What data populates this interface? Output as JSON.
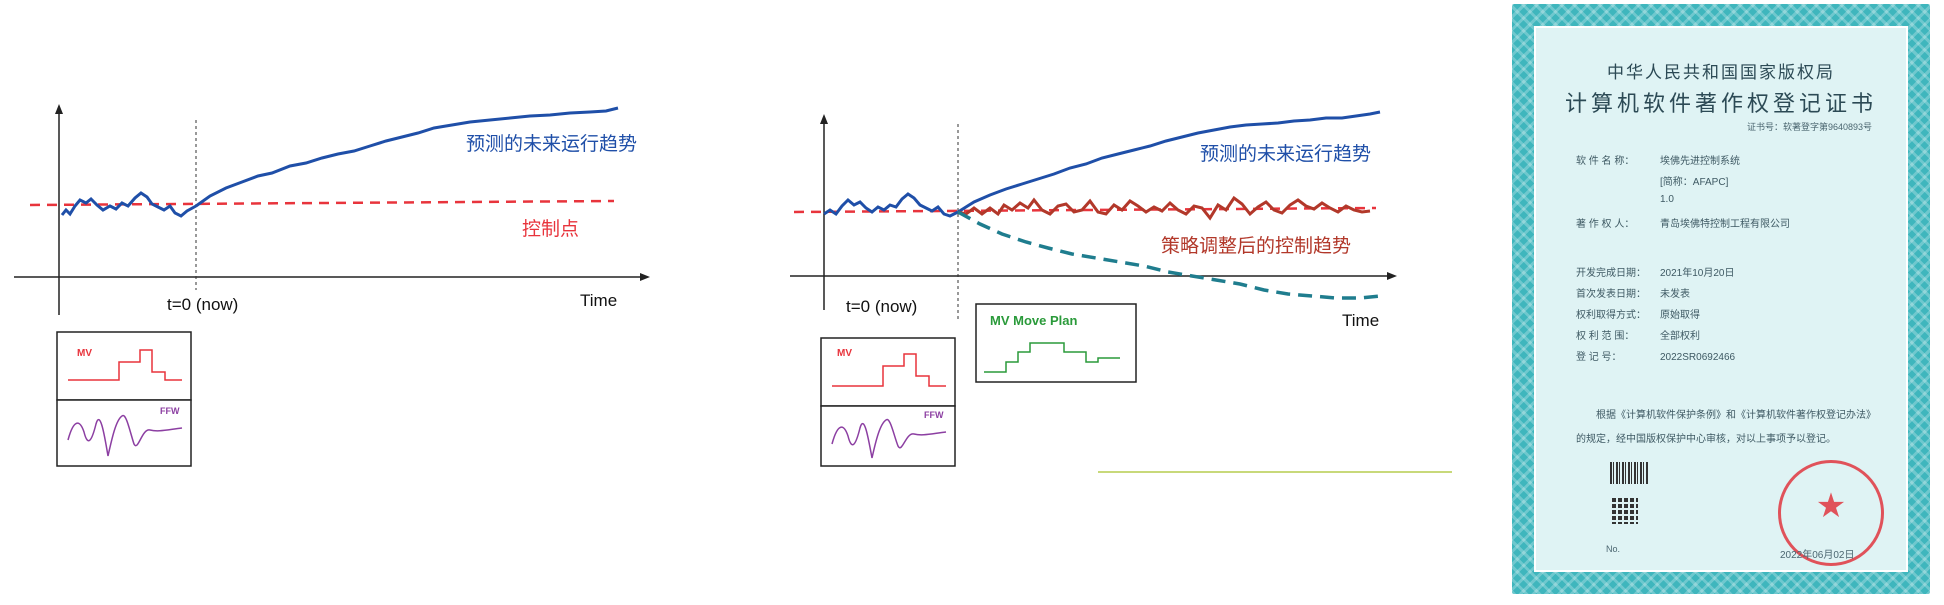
{
  "left": {
    "forecast_label": "预测的未来运行趋势",
    "setpoint_label": "控制点",
    "now_label": "t=0 (now)",
    "time_label": "Time",
    "mv_label": "MV",
    "ffw_label": "FFW"
  },
  "right": {
    "forecast_label": "预测的未来运行趋势",
    "adjusted_label": "策略调整后的控制趋势",
    "now_label": "t=0 (now)",
    "time_label": "Time",
    "mv_label": "MV",
    "ffw_label": "FFW",
    "plan_label": "MV Move Plan"
  },
  "colors": {
    "forecast": "#1f4fa8",
    "setpoint": "#e8343c",
    "adjusted": "#b2382a",
    "dashed_trend": "#1f7d8e",
    "mv": "#e8343c",
    "ffw": "#8c3fa2",
    "plan": "#2a9a3a",
    "certificate_border": "#3fb6bd"
  },
  "certificate": {
    "title1": "中华人民共和国国家版权局",
    "title2": "计算机软件著作权登记证书",
    "number": "证书号：软著登字第9640893号",
    "fields": [
      {
        "label": "软 件 名 称：",
        "value": "埃佛先进控制系统"
      },
      {
        "label": "",
        "value": "[简称：AFAPC]"
      },
      {
        "label": "",
        "value": "1.0"
      },
      {
        "label": "著 作 权 人：",
        "value": "青岛埃佛特控制工程有限公司"
      },
      {
        "label": "开发完成日期：",
        "value": "2021年10月20日"
      },
      {
        "label": "首次发表日期：",
        "value": "未发表"
      },
      {
        "label": "权利取得方式：",
        "value": "原始取得"
      },
      {
        "label": "权 利 范 围：",
        "value": "全部权利"
      },
      {
        "label": "登   记   号：",
        "value": "2022SR0692466"
      }
    ],
    "paragraph": "根据《计算机软件保护条例》和《计算机软件著作权登记办法》的规定，经中国版权保护中心审核，对以上事项予以登记。",
    "no_label": "No.",
    "date": "2022年06月02日"
  }
}
